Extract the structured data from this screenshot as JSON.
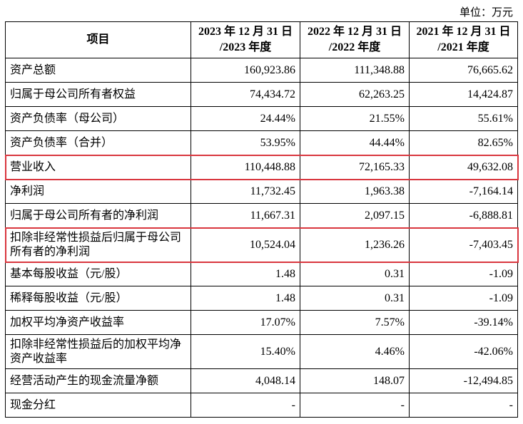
{
  "header": {
    "unit": "单位：万元"
  },
  "table": {
    "columns": [
      "项目",
      "2023 年 12 月 31 日\n/2023 年度",
      "2022 年 12 月 31 日\n/2022 年度",
      "2021 年 12 月 31 日\n/2021 年度"
    ],
    "rows": [
      [
        "资产总额",
        "160,923.86",
        "111,348.88",
        "76,665.62"
      ],
      [
        "归属于母公司所有者权益",
        "74,434.72",
        "62,263.25",
        "14,424.87"
      ],
      [
        "资产负债率（母公司）",
        "24.44%",
        "21.55%",
        "55.61%"
      ],
      [
        "资产负债率（合并）",
        "53.95%",
        "44.44%",
        "82.65%"
      ],
      [
        "营业收入",
        "110,448.88",
        "72,165.33",
        "49,632.08"
      ],
      [
        "净利润",
        "11,732.45",
        "1,963.38",
        "-7,164.14"
      ],
      [
        "归属于母公司所有者的净利润",
        "11,667.31",
        "2,097.15",
        "-6,888.81"
      ],
      [
        "扣除非经常性损益后归属于母公司所有者的净利润",
        "10,524.04",
        "1,236.26",
        "-7,403.45"
      ],
      [
        "基本每股收益（元/股）",
        "1.48",
        "0.31",
        "-1.09"
      ],
      [
        "稀释每股收益（元/股）",
        "1.48",
        "0.31",
        "-1.09"
      ],
      [
        "加权平均净资产收益率",
        "17.07%",
        "7.57%",
        "-39.14%"
      ],
      [
        "扣除非经常性损益后的加权平均净资产收益率",
        "15.40%",
        "4.46%",
        "-42.06%"
      ],
      [
        "经营活动产生的现金流量净额",
        "4,048.14",
        "148.07",
        "-12,494.85"
      ],
      [
        "现金分红",
        "-",
        "-",
        "-"
      ]
    ]
  }
}
